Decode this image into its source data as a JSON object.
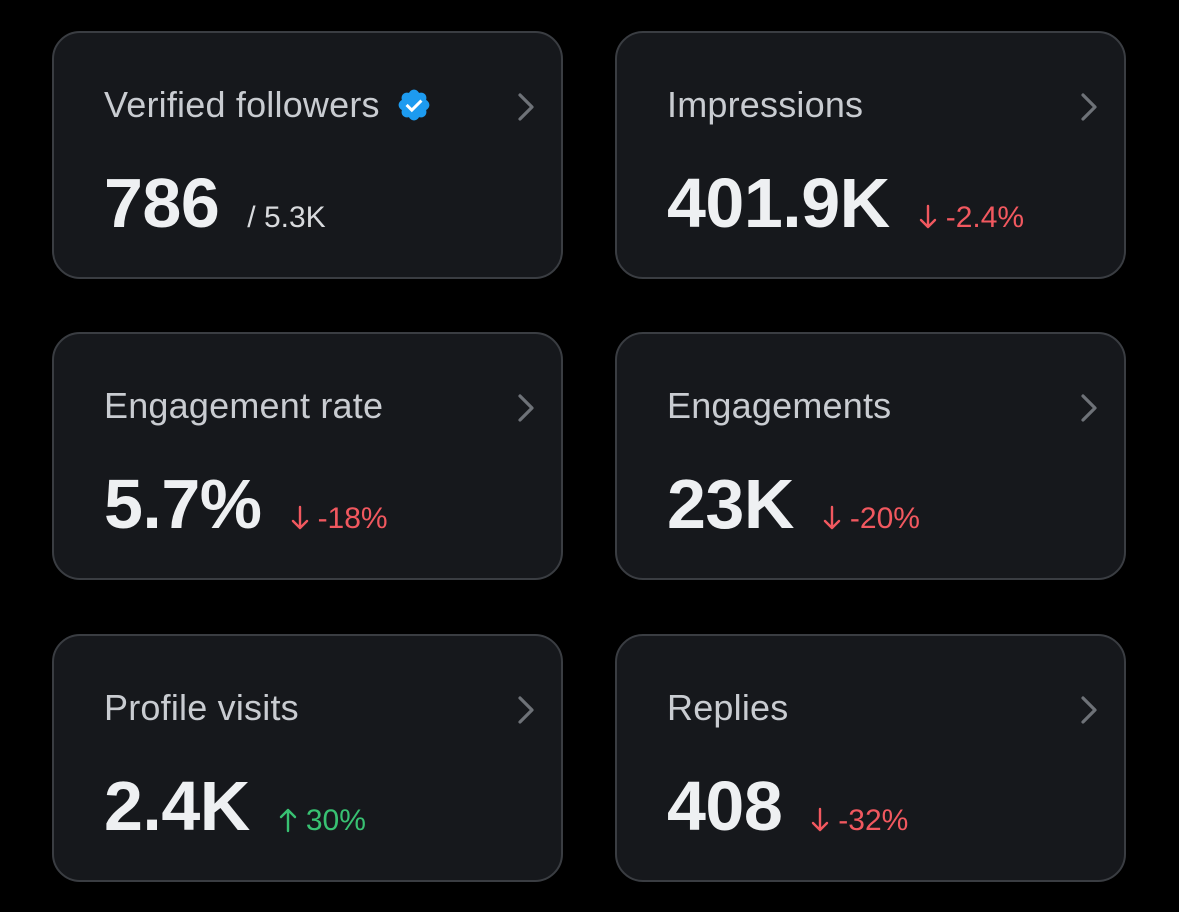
{
  "colors": {
    "background": "#000000",
    "card": "#16181c",
    "border": "#3a3d42",
    "verified_badge": "#1d9bf0",
    "negative": "#f1585f",
    "positive": "#38c172"
  },
  "cards": [
    {
      "title": "Verified followers",
      "icon": "verified-badge-icon",
      "value": "786",
      "sub": "/ 5.3K"
    },
    {
      "title": "Impressions",
      "value": "401.9K",
      "delta": "-2.4%",
      "trend": "down"
    },
    {
      "title": "Engagement rate",
      "value": "5.7%",
      "delta": "-18%",
      "trend": "down"
    },
    {
      "title": "Engagements",
      "value": "23K",
      "delta": "-20%",
      "trend": "down"
    },
    {
      "title": "Profile visits",
      "value": "2.4K",
      "delta": "30%",
      "trend": "up"
    },
    {
      "title": "Replies",
      "value": "408",
      "delta": "-32%",
      "trend": "down"
    }
  ]
}
